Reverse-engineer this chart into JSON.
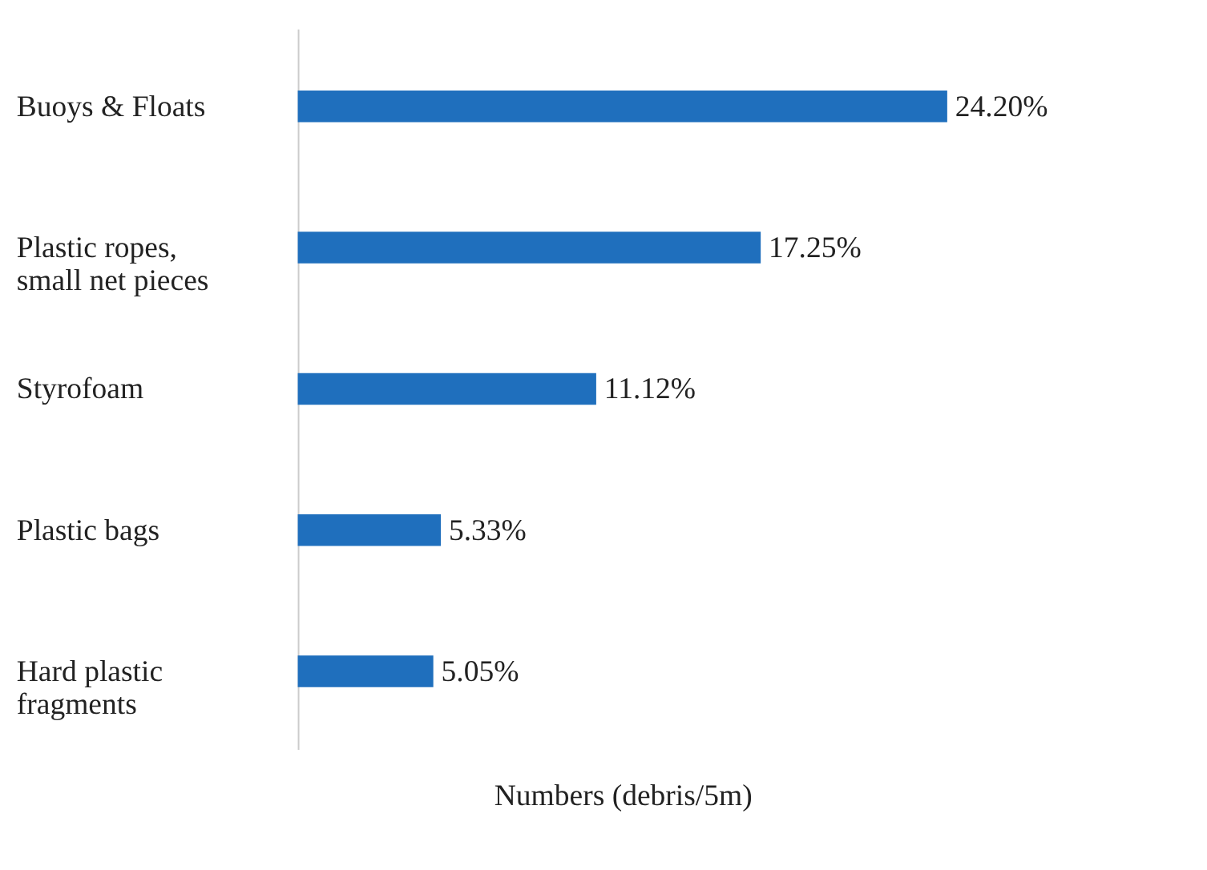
{
  "chart_data": {
    "type": "bar",
    "orientation": "horizontal",
    "xlabel": "Numbers (debris/5m)",
    "categories": [
      "Buoys & Floats",
      "Plastic ropes, small net pieces",
      "Styrofoam",
      "Plastic bags",
      "Hard plastic fragments"
    ],
    "values": [
      24.2,
      17.25,
      11.12,
      5.33,
      5.05
    ],
    "value_labels": [
      "24.20%",
      "17.25%",
      "11.12%",
      "5.33%",
      "5.05%"
    ],
    "color": "#1f6fbd",
    "grid": false
  }
}
